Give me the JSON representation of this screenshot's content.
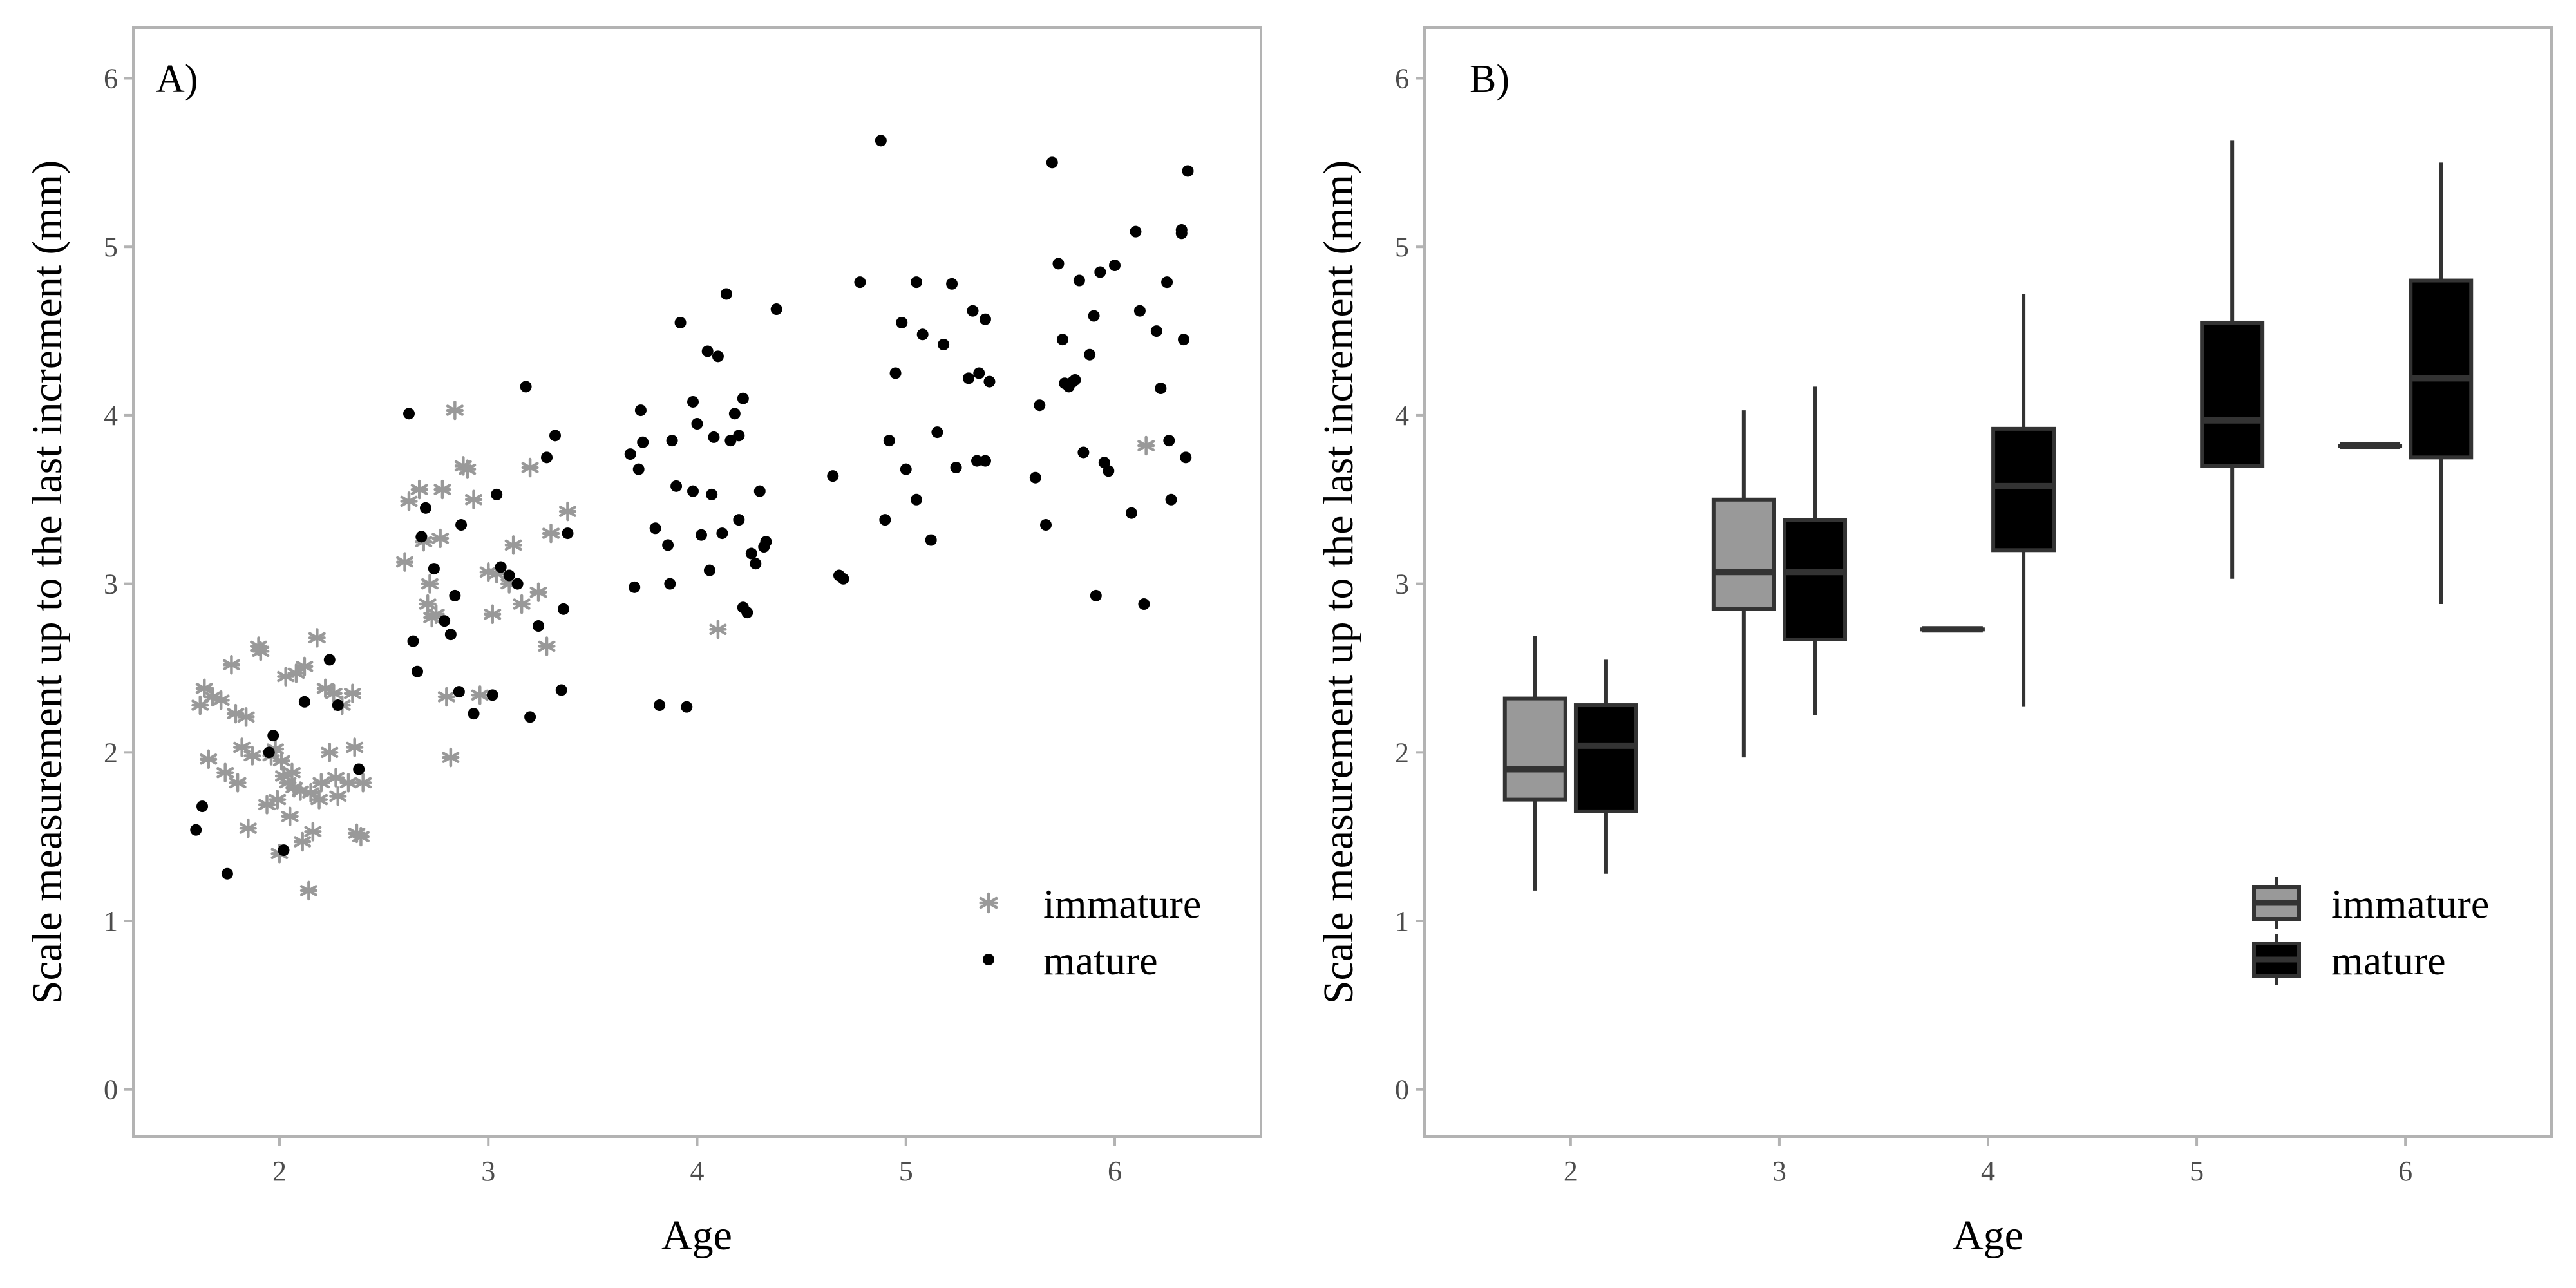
{
  "colors": {
    "immature": "#999999",
    "mature": "#000000",
    "frame": "#b3b3b3",
    "tick": "#4d4d4d",
    "boxline": "#333333"
  },
  "chart_data": [
    {
      "panel": "A)",
      "type": "scatter",
      "xlabel": "Age",
      "ylabel": "Scale measurement up to the last increment (mm)",
      "xlim": [
        1.3,
        6.7
      ],
      "ylim": [
        -0.28,
        6.3
      ],
      "x_ticks": [
        "2",
        "3",
        "4",
        "5",
        "6"
      ],
      "y_ticks": [
        "0",
        "1",
        "2",
        "3",
        "4",
        "5",
        "6"
      ],
      "legend": {
        "position": "bottom-right",
        "entries": [
          "immature",
          "mature"
        ]
      },
      "series": [
        {
          "name": "immature",
          "marker": "asterisk",
          "points": [
            [
              1.62,
              2.28
            ],
            [
              1.64,
              2.38
            ],
            [
              1.66,
              1.96
            ],
            [
              1.68,
              2.33
            ],
            [
              1.72,
              2.31
            ],
            [
              1.74,
              1.88
            ],
            [
              1.77,
              2.52
            ],
            [
              1.79,
              2.23
            ],
            [
              1.8,
              1.82
            ],
            [
              1.82,
              2.03
            ],
            [
              1.84,
              2.21
            ],
            [
              1.85,
              1.55
            ],
            [
              1.87,
              1.98
            ],
            [
              1.9,
              2.63
            ],
            [
              1.91,
              2.6
            ],
            [
              1.94,
              1.69
            ],
            [
              1.96,
              1.98
            ],
            [
              1.98,
              2.02
            ],
            [
              1.99,
              1.72
            ],
            [
              2.0,
              1.4
            ],
            [
              2.01,
              1.95
            ],
            [
              2.02,
              1.86
            ],
            [
              2.03,
              2.45
            ],
            [
              2.04,
              1.82
            ],
            [
              2.05,
              1.62
            ],
            [
              2.06,
              1.88
            ],
            [
              2.07,
              1.79
            ],
            [
              2.08,
              2.47
            ],
            [
              2.1,
              1.77
            ],
            [
              2.11,
              1.47
            ],
            [
              2.12,
              2.51
            ],
            [
              2.14,
              1.18
            ],
            [
              2.15,
              1.76
            ],
            [
              2.16,
              1.53
            ],
            [
              2.18,
              2.68
            ],
            [
              2.19,
              1.72
            ],
            [
              2.2,
              1.82
            ],
            [
              2.22,
              2.38
            ],
            [
              2.24,
              2.0
            ],
            [
              2.26,
              2.35
            ],
            [
              2.27,
              1.85
            ],
            [
              2.28,
              1.74
            ],
            [
              2.3,
              2.28
            ],
            [
              2.33,
              1.82
            ],
            [
              2.35,
              2.35
            ],
            [
              2.36,
              2.03
            ],
            [
              2.37,
              1.52
            ],
            [
              2.39,
              1.5
            ],
            [
              2.4,
              1.82
            ],
            [
              2.6,
              3.13
            ],
            [
              2.62,
              3.49
            ],
            [
              2.67,
              3.56
            ],
            [
              2.69,
              3.25
            ],
            [
              2.71,
              2.88
            ],
            [
              2.72,
              3.0
            ],
            [
              2.73,
              2.8
            ],
            [
              2.75,
              2.82
            ],
            [
              2.77,
              3.27
            ],
            [
              2.78,
              3.56
            ],
            [
              2.8,
              2.33
            ],
            [
              2.82,
              1.97
            ],
            [
              2.84,
              4.03
            ],
            [
              2.88,
              3.7
            ],
            [
              2.9,
              3.68
            ],
            [
              2.93,
              3.5
            ],
            [
              2.96,
              2.34
            ],
            [
              3.0,
              3.07
            ],
            [
              3.02,
              2.82
            ],
            [
              3.04,
              3.06
            ],
            [
              3.1,
              3.0
            ],
            [
              3.12,
              3.23
            ],
            [
              3.16,
              2.88
            ],
            [
              3.2,
              3.69
            ],
            [
              3.24,
              2.95
            ],
            [
              3.28,
              2.63
            ],
            [
              3.3,
              3.3
            ],
            [
              3.38,
              3.43
            ],
            [
              4.1,
              2.73
            ],
            [
              6.15,
              3.82
            ]
          ]
        },
        {
          "name": "mature",
          "marker": "dot",
          "points": [
            [
              1.6,
              1.54
            ],
            [
              1.63,
              1.68
            ],
            [
              1.75,
              1.28
            ],
            [
              1.95,
              2.0
            ],
            [
              1.97,
              2.1
            ],
            [
              2.02,
              1.42
            ],
            [
              2.12,
              2.3
            ],
            [
              2.24,
              2.55
            ],
            [
              2.28,
              2.28
            ],
            [
              2.38,
              1.9
            ],
            [
              2.62,
              4.01
            ],
            [
              2.64,
              2.66
            ],
            [
              2.66,
              2.48
            ],
            [
              2.68,
              3.28
            ],
            [
              2.7,
              3.45
            ],
            [
              2.74,
              3.09
            ],
            [
              2.79,
              2.78
            ],
            [
              2.82,
              2.7
            ],
            [
              2.84,
              2.93
            ],
            [
              2.86,
              2.36
            ],
            [
              2.87,
              3.35
            ],
            [
              2.93,
              2.23
            ],
            [
              3.02,
              2.34
            ],
            [
              3.04,
              3.53
            ],
            [
              3.06,
              3.1
            ],
            [
              3.1,
              3.05
            ],
            [
              3.14,
              3.0
            ],
            [
              3.18,
              4.17
            ],
            [
              3.2,
              2.21
            ],
            [
              3.24,
              2.75
            ],
            [
              3.28,
              3.75
            ],
            [
              3.32,
              3.88
            ],
            [
              3.35,
              2.37
            ],
            [
              3.36,
              2.85
            ],
            [
              3.38,
              3.3
            ],
            [
              3.68,
              3.77
            ],
            [
              3.7,
              2.98
            ],
            [
              3.72,
              3.68
            ],
            [
              3.73,
              4.03
            ],
            [
              3.74,
              3.84
            ],
            [
              3.8,
              3.33
            ],
            [
              3.82,
              2.28
            ],
            [
              3.86,
              3.23
            ],
            [
              3.87,
              3.0
            ],
            [
              3.88,
              3.85
            ],
            [
              3.9,
              3.58
            ],
            [
              3.92,
              4.55
            ],
            [
              3.95,
              2.27
            ],
            [
              3.98,
              3.55
            ],
            [
              3.98,
              4.08
            ],
            [
              4.0,
              3.95
            ],
            [
              4.02,
              3.29
            ],
            [
              4.05,
              4.38
            ],
            [
              4.06,
              3.08
            ],
            [
              4.07,
              3.53
            ],
            [
              4.08,
              3.87
            ],
            [
              4.1,
              4.35
            ],
            [
              4.12,
              3.3
            ],
            [
              4.14,
              4.72
            ],
            [
              4.16,
              3.85
            ],
            [
              4.18,
              4.01
            ],
            [
              4.2,
              3.88
            ],
            [
              4.2,
              3.38
            ],
            [
              4.22,
              4.1
            ],
            [
              4.22,
              2.86
            ],
            [
              4.24,
              2.83
            ],
            [
              4.26,
              3.18
            ],
            [
              4.28,
              3.12
            ],
            [
              4.3,
              3.55
            ],
            [
              4.32,
              3.22
            ],
            [
              4.33,
              3.25
            ],
            [
              4.38,
              4.63
            ],
            [
              4.65,
              3.64
            ],
            [
              4.68,
              3.05
            ],
            [
              4.7,
              3.03
            ],
            [
              4.78,
              4.79
            ],
            [
              4.88,
              5.63
            ],
            [
              4.9,
              3.38
            ],
            [
              4.92,
              3.85
            ],
            [
              4.95,
              4.25
            ],
            [
              4.98,
              4.55
            ],
            [
              5.0,
              3.68
            ],
            [
              5.05,
              4.79
            ],
            [
              5.05,
              3.5
            ],
            [
              5.08,
              4.48
            ],
            [
              5.12,
              3.26
            ],
            [
              5.15,
              3.9
            ],
            [
              5.18,
              4.42
            ],
            [
              5.22,
              4.78
            ],
            [
              5.24,
              3.69
            ],
            [
              5.3,
              4.22
            ],
            [
              5.32,
              4.62
            ],
            [
              5.34,
              3.73
            ],
            [
              5.35,
              4.25
            ],
            [
              5.38,
              4.57
            ],
            [
              5.38,
              3.73
            ],
            [
              5.4,
              4.2
            ],
            [
              5.62,
              3.63
            ],
            [
              5.64,
              4.06
            ],
            [
              5.67,
              3.35
            ],
            [
              5.7,
              5.5
            ],
            [
              5.73,
              4.9
            ],
            [
              5.75,
              4.45
            ],
            [
              5.76,
              4.19
            ],
            [
              5.78,
              4.17
            ],
            [
              5.8,
              4.2
            ],
            [
              5.81,
              4.21
            ],
            [
              5.83,
              4.8
            ],
            [
              5.85,
              3.78
            ],
            [
              5.88,
              4.36
            ],
            [
              5.9,
              4.59
            ],
            [
              5.91,
              2.93
            ],
            [
              5.93,
              4.85
            ],
            [
              5.95,
              3.72
            ],
            [
              5.97,
              3.67
            ],
            [
              6.0,
              4.89
            ],
            [
              6.08,
              3.42
            ],
            [
              6.1,
              5.09
            ],
            [
              6.12,
              4.62
            ],
            [
              6.14,
              2.88
            ],
            [
              6.2,
              4.5
            ],
            [
              6.22,
              4.16
            ],
            [
              6.25,
              4.79
            ],
            [
              6.26,
              3.85
            ],
            [
              6.27,
              3.5
            ],
            [
              6.32,
              5.08
            ],
            [
              6.33,
              4.45
            ],
            [
              6.34,
              3.75
            ],
            [
              6.35,
              5.45
            ],
            [
              6.32,
              5.1
            ]
          ]
        }
      ]
    },
    {
      "panel": "B)",
      "type": "box",
      "xlabel": "Age",
      "ylabel": "Scale measurement up to the last increment (mm)",
      "xlim": [
        1.3,
        6.7
      ],
      "ylim": [
        -0.28,
        6.3
      ],
      "x_ticks": [
        "2",
        "3",
        "4",
        "5",
        "6"
      ],
      "y_ticks": [
        "0",
        "1",
        "2",
        "3",
        "4",
        "5",
        "6"
      ],
      "legend": {
        "position": "bottom-right",
        "entries": [
          "immature",
          "mature"
        ]
      },
      "boxes": [
        {
          "age": 2,
          "group": "immature",
          "min": 1.18,
          "q1": 1.72,
          "median": 1.9,
          "q3": 2.32,
          "max": 2.69
        },
        {
          "age": 2,
          "group": "mature",
          "min": 1.28,
          "q1": 1.65,
          "median": 2.04,
          "q3": 2.28,
          "max": 2.55
        },
        {
          "age": 3,
          "group": "immature",
          "min": 1.97,
          "q1": 2.85,
          "median": 3.07,
          "q3": 3.5,
          "max": 4.03
        },
        {
          "age": 3,
          "group": "mature",
          "min": 2.22,
          "q1": 2.67,
          "median": 3.07,
          "q3": 3.38,
          "max": 4.17
        },
        {
          "age": 4,
          "group": "immature",
          "min": 2.73,
          "q1": 2.73,
          "median": 2.73,
          "q3": 2.73,
          "max": 2.73
        },
        {
          "age": 4,
          "group": "mature",
          "min": 2.27,
          "q1": 3.2,
          "median": 3.58,
          "q3": 3.92,
          "max": 4.72
        },
        {
          "age": 5,
          "group": "mature",
          "min": 3.03,
          "q1": 3.7,
          "median": 3.97,
          "q3": 4.55,
          "max": 5.63
        },
        {
          "age": 6,
          "group": "immature",
          "min": 3.82,
          "q1": 3.82,
          "median": 3.82,
          "q3": 3.82,
          "max": 3.82
        },
        {
          "age": 6,
          "group": "mature",
          "min": 2.88,
          "q1": 3.75,
          "median": 4.22,
          "q3": 4.8,
          "max": 5.5
        }
      ]
    }
  ]
}
